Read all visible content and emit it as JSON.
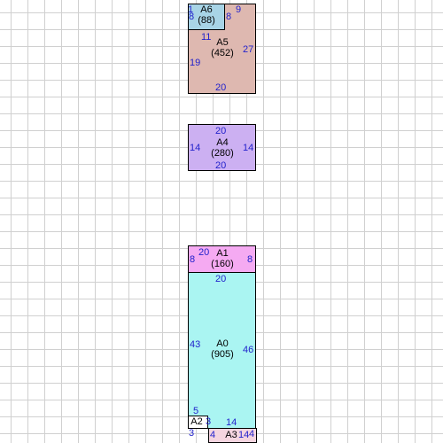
{
  "rooms": {
    "a0": {
      "name": "A0",
      "area": "(905)",
      "dim_top": "20",
      "dim_left": "43",
      "dim_right": "46",
      "dim_bottom_left": "5",
      "dim_bottom_right": "14"
    },
    "a1": {
      "name": "A1",
      "area": "(160)",
      "dim_top": "20",
      "dim_left": "8",
      "dim_right": "8"
    },
    "a2": {
      "name": "A2",
      "dim_left": "3",
      "dim_right": "3"
    },
    "a3": {
      "name": "A3",
      "dim_left": "4",
      "dim_right": "14",
      "dim_far_right": "4"
    },
    "a4": {
      "name": "A4",
      "area": "(280)",
      "dim_top": "20",
      "dim_bottom": "20",
      "dim_left": "14",
      "dim_right": "14"
    },
    "a5": {
      "name": "A5",
      "area": "(452)",
      "dim_top": "11",
      "dim_left": "19",
      "dim_right": "27",
      "dim_bottom": "20",
      "dim_top_right": "9",
      "dim_inner": "8"
    },
    "a6": {
      "name": "A6",
      "area": "(88)",
      "dim_top": "1",
      "dim_left": "8"
    }
  },
  "colors": {
    "a0": "#aaf5f2",
    "a1": "#f5aaf2",
    "a2": "#ffffff",
    "a3": "#f5d5e0",
    "a4": "#ccb0f2",
    "a5": "#deb8b0",
    "a6": "#a8d4e6",
    "dimension_text": "#2222cc",
    "grid": "#d0d0d0"
  }
}
